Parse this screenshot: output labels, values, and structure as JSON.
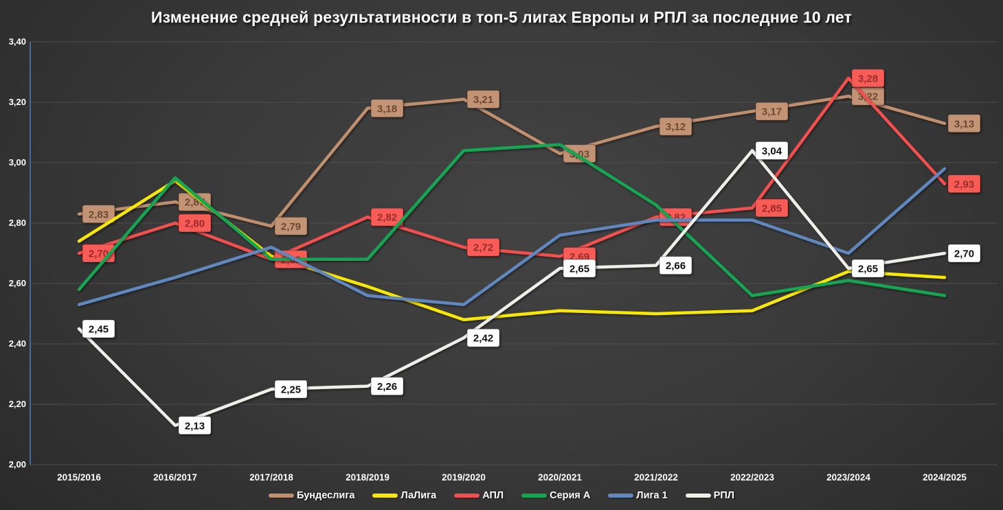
{
  "title": "Изменение средней результативности в топ-5 лигах Европы и РПЛ за последние 10 лет",
  "chart_data": {
    "type": "line",
    "title": "Изменение средней результативности в топ-5 лигах Европы и РПЛ за последние 10 лет",
    "categories": [
      "2015/2016",
      "2016/2017",
      "2017/2018",
      "2018/2019",
      "2019/2020",
      "2020/2021",
      "2021/2022",
      "2022/2023",
      "2023/2024",
      "2024/2025"
    ],
    "y_axis": {
      "min": 2.0,
      "max": 3.4,
      "step": 0.2,
      "tick_labels": [
        "2,00",
        "2,20",
        "2,40",
        "2,60",
        "2,80",
        "3,00",
        "3,20",
        "3,40"
      ]
    },
    "grid": true,
    "legend_position": "bottom",
    "series": [
      {
        "name": "Бундеслига",
        "color": "#C08F6E",
        "values": [
          2.83,
          2.87,
          2.79,
          3.18,
          3.21,
          3.03,
          3.12,
          3.17,
          3.22,
          3.13
        ],
        "data_labels": true,
        "labels": [
          "2,83",
          "2,87",
          "2,79",
          "3,18",
          "3,21",
          "3,03",
          "3,12",
          "3,17",
          "3,22",
          "3,13"
        ],
        "label_bg": "#C39374",
        "label_text_color": "#6B4A33"
      },
      {
        "name": "ЛаЛига",
        "color": "#F9E900",
        "values": [
          2.74,
          2.94,
          2.69,
          2.59,
          2.48,
          2.51,
          2.5,
          2.51,
          2.64,
          2.62
        ],
        "data_labels": false
      },
      {
        "name": "АПЛ",
        "color": "#F25050",
        "values": [
          2.7,
          2.8,
          2.68,
          2.82,
          2.72,
          2.69,
          2.82,
          2.85,
          3.28,
          2.93
        ],
        "data_labels": true,
        "labels": [
          "2,70",
          "2,80",
          "2,68",
          "2,82",
          "2,72",
          "2,69",
          "2,82",
          "2,85",
          "3,28",
          "2,93"
        ],
        "label_bg": "#F75B57",
        "label_text_color": "#9B2B2B"
      },
      {
        "name": "Серия А",
        "color": "#13A653",
        "values": [
          2.58,
          2.95,
          2.68,
          2.68,
          3.04,
          3.06,
          2.86,
          2.56,
          2.61,
          2.56
        ],
        "data_labels": false
      },
      {
        "name": "Лига 1",
        "color": "#6088BE",
        "values": [
          2.53,
          2.62,
          2.72,
          2.56,
          2.53,
          2.76,
          2.81,
          2.81,
          2.7,
          2.98
        ],
        "data_labels": false
      },
      {
        "name": "РПЛ",
        "color": "#EFEFEA",
        "values": [
          2.45,
          2.13,
          2.25,
          2.26,
          2.42,
          2.65,
          2.66,
          3.04,
          2.65,
          2.7
        ],
        "data_labels": true,
        "labels": [
          "2,45",
          "2,13",
          "2,25",
          "2,26",
          "2,42",
          "2,65",
          "2,66",
          "3,04",
          "2,65",
          "2,70"
        ],
        "label_bg": "#FFFFFF",
        "label_text_color": "#111111"
      }
    ]
  }
}
